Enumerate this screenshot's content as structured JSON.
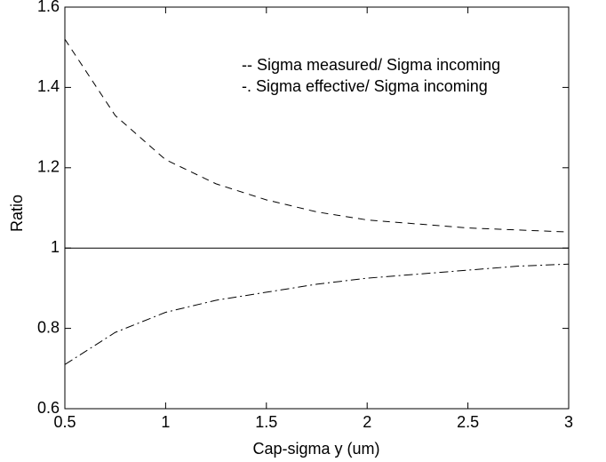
{
  "chart_data": {
    "type": "line",
    "xlabel": "Cap-sigma y (um)",
    "ylabel": "Ratio",
    "x": [
      0.5,
      0.75,
      1,
      1.25,
      1.5,
      1.75,
      2,
      2.25,
      2.5,
      2.75,
      3
    ],
    "series": [
      {
        "name": "-- Sigma measured/ Sigma incoming",
        "color": "#000000",
        "linestyle": "--",
        "values": [
          1.52,
          1.33,
          1.22,
          1.16,
          1.12,
          1.09,
          1.07,
          1.06,
          1.05,
          1.045,
          1.04
        ]
      },
      {
        "name": "-. Sigma effective/ Sigma incoming",
        "color": "#000000",
        "linestyle": "-.",
        "values": [
          0.71,
          0.79,
          0.84,
          0.87,
          0.89,
          0.91,
          0.925,
          0.935,
          0.945,
          0.955,
          0.96
        ]
      },
      {
        "color": "#000000",
        "linestyle": "-",
        "values": [
          1,
          1,
          1,
          1,
          1,
          1,
          1,
          1,
          1,
          1,
          1
        ]
      }
    ],
    "xlim": [
      0.5,
      3
    ],
    "xticks": [
      0.5,
      1,
      1.5,
      2,
      2.5,
      3
    ],
    "ylim": [
      0.6,
      1.6
    ],
    "yticks": [
      0.6,
      0.8,
      1,
      1.2,
      1.4,
      1.6
    ],
    "grid": false,
    "legend": "upper right"
  }
}
